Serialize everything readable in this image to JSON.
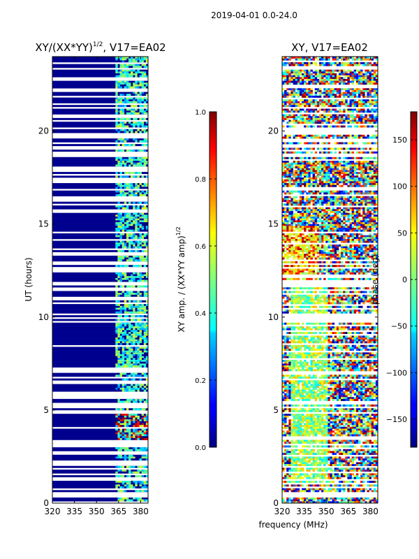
{
  "figure": {
    "suptitle": "2019-04-01 0.0-24.0",
    "shared_xlabel": "frequency (MHz)"
  },
  "chart_data": [
    {
      "type": "heatmap",
      "title": "XY/(XX*YY)",
      "title_exponent": "1/2",
      "title_suffix": ", V17=EA02",
      "xlabel": "",
      "ylabel": "UT (hours)",
      "xlim": [
        320,
        385
      ],
      "ylim": [
        0,
        24
      ],
      "xticks": [
        320,
        335,
        350,
        365,
        380
      ],
      "yticks": [
        0,
        5,
        10,
        15,
        20
      ],
      "colorbar": {
        "label": "XY amp. / (XX*YY amp)",
        "label_exponent": "1/2",
        "range": [
          0.0,
          1.0
        ],
        "ticks": [
          "0.0",
          "0.2",
          "0.4",
          "0.6",
          "0.8",
          "1.0"
        ],
        "colormap": "jet"
      }
    },
    {
      "type": "heatmap",
      "title": "XY, V17=EA02",
      "xlabel": "frequency (MHz)",
      "ylabel": "",
      "xlim": [
        320,
        385
      ],
      "ylim": [
        0,
        24
      ],
      "xticks": [
        320,
        335,
        350,
        365,
        380
      ],
      "yticks": [
        0,
        5,
        10,
        15,
        20
      ],
      "colorbar": {
        "label": "phase (deg)",
        "range": [
          -180,
          180
        ],
        "ticks": [
          "150",
          "100",
          "50",
          "0",
          "−50",
          "−100",
          "−150"
        ],
        "colormap": "jet"
      }
    }
  ]
}
